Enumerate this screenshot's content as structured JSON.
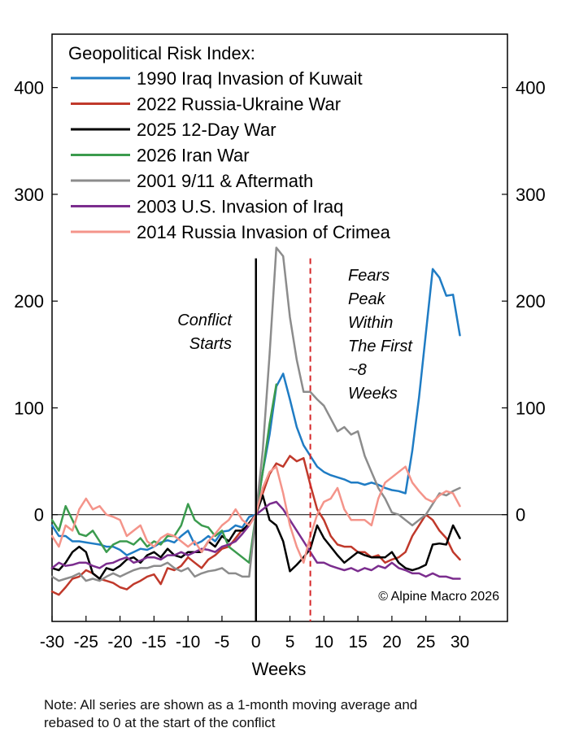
{
  "chart_data": {
    "type": "line",
    "title": "",
    "xlabel": "Weeks",
    "ylabel": "",
    "xlim": [
      -30,
      37
    ],
    "ylim": [
      -100,
      450
    ],
    "x_ticks": [
      -30,
      -25,
      -20,
      -15,
      -10,
      -5,
      0,
      5,
      10,
      15,
      20,
      25,
      30
    ],
    "x_tick_labels": [
      "-30",
      "-25",
      "-20",
      "-15",
      "-10",
      "-5",
      "0",
      "5",
      "10",
      "15",
      "20",
      "25",
      "30"
    ],
    "y_ticks": [
      0,
      100,
      200,
      300,
      400
    ],
    "y_tick_labels": [
      "0",
      "100",
      "200",
      "300",
      "400"
    ],
    "grid": false,
    "legend_title": "Geopolitical Risk Index:",
    "legend_position": "top-left",
    "annotations": {
      "conflict_line1": "Conflict",
      "conflict_line2": "Starts",
      "fears_lines": [
        "Fears",
        "Peak",
        "Within",
        "The First",
        "~8",
        "Weeks"
      ],
      "credit": "© Alpine Macro 2026"
    },
    "reference_lines": {
      "conflict_start_x": 0,
      "dashed_x": 8,
      "zero_y": 0
    },
    "series": [
      {
        "name": "1990 Iraq Invasion of Kuwait",
        "color": "#1f7cc4",
        "x": [
          -30,
          -29,
          -28,
          -27,
          -26,
          -25,
          -24,
          -23,
          -22,
          -21,
          -20,
          -19,
          -18,
          -17,
          -16,
          -15,
          -14,
          -13,
          -12,
          -11,
          -10,
          -9,
          -8,
          -7,
          -6,
          -5,
          -4,
          -3,
          -2,
          -1,
          0,
          1,
          2,
          3,
          4,
          5,
          6,
          7,
          8,
          9,
          10,
          11,
          12,
          13,
          14,
          15,
          16,
          17,
          18,
          19,
          20,
          21,
          22,
          23,
          24,
          25,
          26,
          27,
          28,
          29,
          30
        ],
        "values": [
          -10,
          -20,
          -20,
          -25,
          -25,
          -26,
          -27,
          -28,
          -30,
          -30,
          -33,
          -38,
          -35,
          -32,
          -33,
          -30,
          -26,
          -24,
          -26,
          -20,
          -15,
          -28,
          -25,
          -20,
          -25,
          -16,
          -15,
          -10,
          -12,
          -2,
          0,
          40,
          75,
          120,
          132,
          108,
          82,
          65,
          55,
          45,
          40,
          37,
          35,
          33,
          30,
          30,
          28,
          30,
          28,
          25,
          23,
          22,
          20,
          60,
          110,
          170,
          230,
          222,
          205,
          206,
          168
        ]
      },
      {
        "name": "2022 Russia-Ukraine War",
        "color": "#c0392b",
        "x": [
          -30,
          -29,
          -28,
          -27,
          -26,
          -25,
          -24,
          -23,
          -22,
          -21,
          -20,
          -19,
          -18,
          -17,
          -16,
          -15,
          -14,
          -13,
          -12,
          -11,
          -10,
          -9,
          -8,
          -7,
          -6,
          -5,
          -4,
          -3,
          -2,
          -1,
          0,
          1,
          2,
          3,
          4,
          5,
          6,
          7,
          8,
          9,
          10,
          11,
          12,
          13,
          14,
          15,
          16,
          17,
          18,
          19,
          20,
          21,
          22,
          23,
          24,
          25,
          26,
          27,
          28,
          29,
          30
        ],
        "values": [
          -72,
          -75,
          -68,
          -60,
          -58,
          -52,
          -55,
          -60,
          -62,
          -64,
          -68,
          -70,
          -65,
          -62,
          -58,
          -56,
          -65,
          -50,
          -52,
          -48,
          -40,
          -45,
          -50,
          -42,
          -38,
          -32,
          -30,
          -22,
          -14,
          -10,
          0,
          20,
          38,
          48,
          45,
          55,
          50,
          53,
          28,
          5,
          -5,
          -20,
          -28,
          -30,
          -30,
          -35,
          -35,
          -40,
          -38,
          -45,
          -42,
          -40,
          -35,
          -20,
          -10,
          0,
          -5,
          -15,
          -22,
          -35,
          -42
        ]
      },
      {
        "name": "2025 12-Day War",
        "color": "#000000",
        "x": [
          -30,
          -29,
          -28,
          -27,
          -26,
          -25,
          -24,
          -23,
          -22,
          -21,
          -20,
          -19,
          -18,
          -17,
          -16,
          -15,
          -14,
          -13,
          -12,
          -11,
          -10,
          -9,
          -8,
          -7,
          -6,
          -5,
          -4,
          -3,
          -2,
          -1,
          0,
          1,
          2,
          3,
          4,
          5,
          6,
          7,
          8,
          9,
          10,
          11,
          12,
          13,
          14,
          15,
          16,
          17,
          18,
          19,
          20,
          21,
          22,
          23,
          24,
          25,
          26,
          27,
          28,
          29,
          30
        ],
        "values": [
          -50,
          -52,
          -45,
          -35,
          -30,
          -35,
          -55,
          -60,
          -50,
          -52,
          -48,
          -42,
          -40,
          -45,
          -38,
          -35,
          -40,
          -32,
          -38,
          -40,
          -35,
          -35,
          -35,
          -25,
          -30,
          -20,
          -25,
          -15,
          -15,
          -8,
          0,
          18,
          -5,
          -10,
          -25,
          -53,
          -47,
          -40,
          -32,
          -10,
          -22,
          -30,
          -38,
          -45,
          -40,
          -35,
          -38,
          -40,
          -40,
          -40,
          -35,
          -45,
          -50,
          -52,
          -50,
          -47,
          -28,
          -27,
          -28,
          -10,
          -22
        ]
      },
      {
        "name": "2026 Iran War",
        "color": "#3b9b4e",
        "x": [
          -30,
          -29,
          -28,
          -27,
          -26,
          -25,
          -24,
          -23,
          -22,
          -21,
          -20,
          -19,
          -18,
          -17,
          -16,
          -15,
          -14,
          -13,
          -12,
          -11,
          -10,
          -9,
          -8,
          -7,
          -6,
          -5,
          -4,
          -3,
          -2,
          -1,
          0,
          1,
          2,
          3
        ],
        "values": [
          -5,
          -15,
          8,
          -5,
          -18,
          -20,
          -15,
          -25,
          -35,
          -28,
          -25,
          -25,
          -28,
          -22,
          -30,
          -25,
          -28,
          -20,
          -20,
          -10,
          10,
          -5,
          -10,
          -12,
          -20,
          -15,
          -30,
          -35,
          -40,
          -45,
          0,
          40,
          85,
          122
        ]
      },
      {
        "name": "2001 9/11 & Aftermath",
        "color": "#8c8c8c",
        "x": [
          -30,
          -29,
          -28,
          -27,
          -26,
          -25,
          -24,
          -23,
          -22,
          -21,
          -20,
          -19,
          -18,
          -17,
          -16,
          -15,
          -14,
          -13,
          -12,
          -11,
          -10,
          -9,
          -8,
          -7,
          -6,
          -5,
          -4,
          -3,
          -2,
          -1,
          0,
          1,
          2,
          3,
          4,
          5,
          6,
          7,
          8,
          9,
          10,
          11,
          12,
          13,
          14,
          15,
          16,
          17,
          18,
          19,
          20,
          21,
          22,
          23,
          24,
          25,
          26,
          27,
          28,
          29,
          30
        ],
        "values": [
          -58,
          -62,
          -60,
          -58,
          -55,
          -62,
          -60,
          -62,
          -58,
          -55,
          -58,
          -55,
          -52,
          -50,
          -50,
          -48,
          -48,
          -45,
          -50,
          -53,
          -50,
          -58,
          -55,
          -53,
          -52,
          -50,
          -55,
          -55,
          -58,
          -58,
          0,
          60,
          150,
          250,
          242,
          185,
          145,
          115,
          115,
          108,
          102,
          90,
          78,
          82,
          75,
          78,
          55,
          40,
          25,
          15,
          2,
          0,
          -5,
          -10,
          -5,
          0,
          10,
          20,
          18,
          22,
          25
        ]
      },
      {
        "name": "2003 U.S. Invasion of Iraq",
        "color": "#7b2d8e",
        "x": [
          -30,
          -29,
          -28,
          -27,
          -26,
          -25,
          -24,
          -23,
          -22,
          -21,
          -20,
          -19,
          -18,
          -17,
          -16,
          -15,
          -14,
          -13,
          -12,
          -11,
          -10,
          -9,
          -8,
          -7,
          -6,
          -5,
          -4,
          -3,
          -2,
          -1,
          0,
          1,
          2,
          3,
          4,
          5,
          6,
          7,
          8,
          9,
          10,
          11,
          12,
          13,
          14,
          15,
          16,
          17,
          18,
          19,
          20,
          21,
          22,
          23,
          24,
          25,
          26,
          27,
          28,
          29,
          30
        ],
        "values": [
          -50,
          -45,
          -48,
          -47,
          -45,
          -45,
          -48,
          -50,
          -46,
          -45,
          -42,
          -40,
          -45,
          -43,
          -40,
          -40,
          -42,
          -38,
          -38,
          -35,
          -38,
          -35,
          -32,
          -33,
          -35,
          -30,
          -28,
          -25,
          -18,
          -10,
          0,
          5,
          10,
          12,
          5,
          -5,
          -15,
          -25,
          -35,
          -45,
          -45,
          -48,
          -50,
          -52,
          -50,
          -53,
          -50,
          -52,
          -48,
          -50,
          -45,
          -50,
          -52,
          -55,
          -55,
          -58,
          -55,
          -58,
          -58,
          -60,
          -60
        ]
      },
      {
        "name": "2014 Russia Invasion of Crimea",
        "color": "#f4948a",
        "x": [
          -30,
          -29,
          -28,
          -27,
          -26,
          -25,
          -24,
          -23,
          -22,
          -21,
          -20,
          -19,
          -18,
          -17,
          -16,
          -15,
          -14,
          -13,
          -12,
          -11,
          -10,
          -9,
          -8,
          -7,
          -6,
          -5,
          -4,
          -3,
          -2,
          -1,
          0,
          1,
          2,
          3,
          4,
          5,
          6,
          7,
          8,
          9,
          10,
          11,
          12,
          13,
          14,
          15,
          16,
          17,
          18,
          19,
          20,
          21,
          22,
          23,
          24,
          25,
          26,
          27,
          28,
          29,
          30
        ],
        "values": [
          -20,
          -30,
          -10,
          -15,
          5,
          15,
          5,
          8,
          0,
          -2,
          -5,
          -20,
          -15,
          -10,
          -25,
          -30,
          -22,
          -18,
          -20,
          -25,
          -30,
          -25,
          -35,
          -25,
          -18,
          -10,
          -5,
          5,
          -5,
          -10,
          0,
          25,
          40,
          45,
          20,
          -10,
          -30,
          -45,
          -20,
          0,
          12,
          15,
          25,
          5,
          -5,
          -5,
          -5,
          -10,
          15,
          30,
          35,
          40,
          45,
          30,
          22,
          15,
          12,
          18,
          22,
          20,
          8
        ]
      }
    ]
  },
  "note": {
    "line1": "Note: All series are shown as a 1-month moving average and",
    "line2": "rebased to 0 at the start of the conflict"
  }
}
